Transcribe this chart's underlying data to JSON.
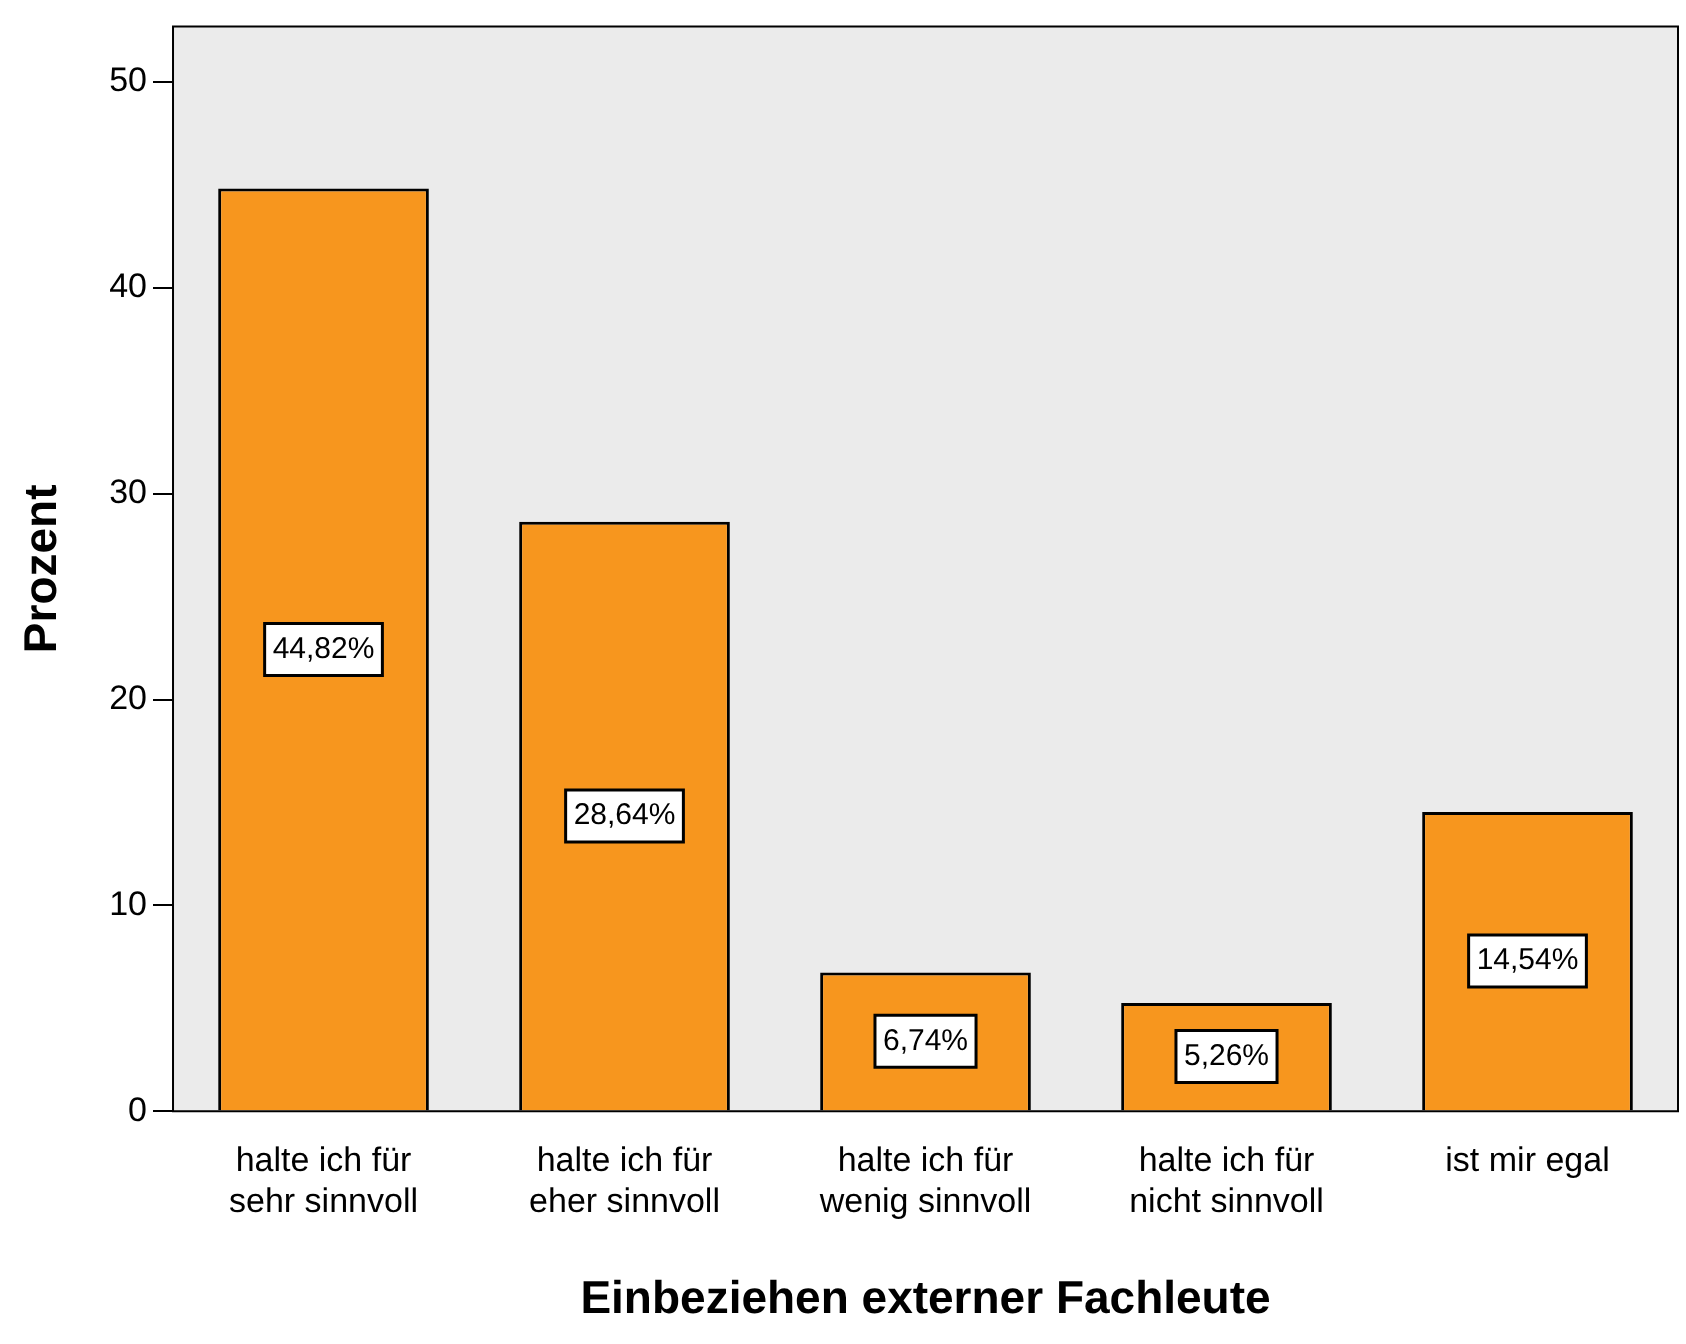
{
  "chart_data": {
    "type": "bar",
    "xlabel": "Einbeziehen externer Fachleute",
    "ylabel": "Prozent",
    "categories": [
      "halte ich für sehr sinnvoll",
      "halte ich für eher sinnvoll",
      "halte ich für wenig sinnvoll",
      "halte ich für nicht sinnvoll",
      "ist mir egal"
    ],
    "values": [
      44.82,
      28.64,
      6.74,
      5.26,
      14.54
    ],
    "value_labels": [
      "44,82%",
      "28,64%",
      "6,74%",
      "5,26%",
      "14,54%"
    ],
    "color": "#f7961e",
    "ylim": [
      0,
      52.7
    ],
    "yticks": [
      0,
      10,
      20,
      30,
      40,
      50
    ],
    "grid": false,
    "legend": false
  }
}
